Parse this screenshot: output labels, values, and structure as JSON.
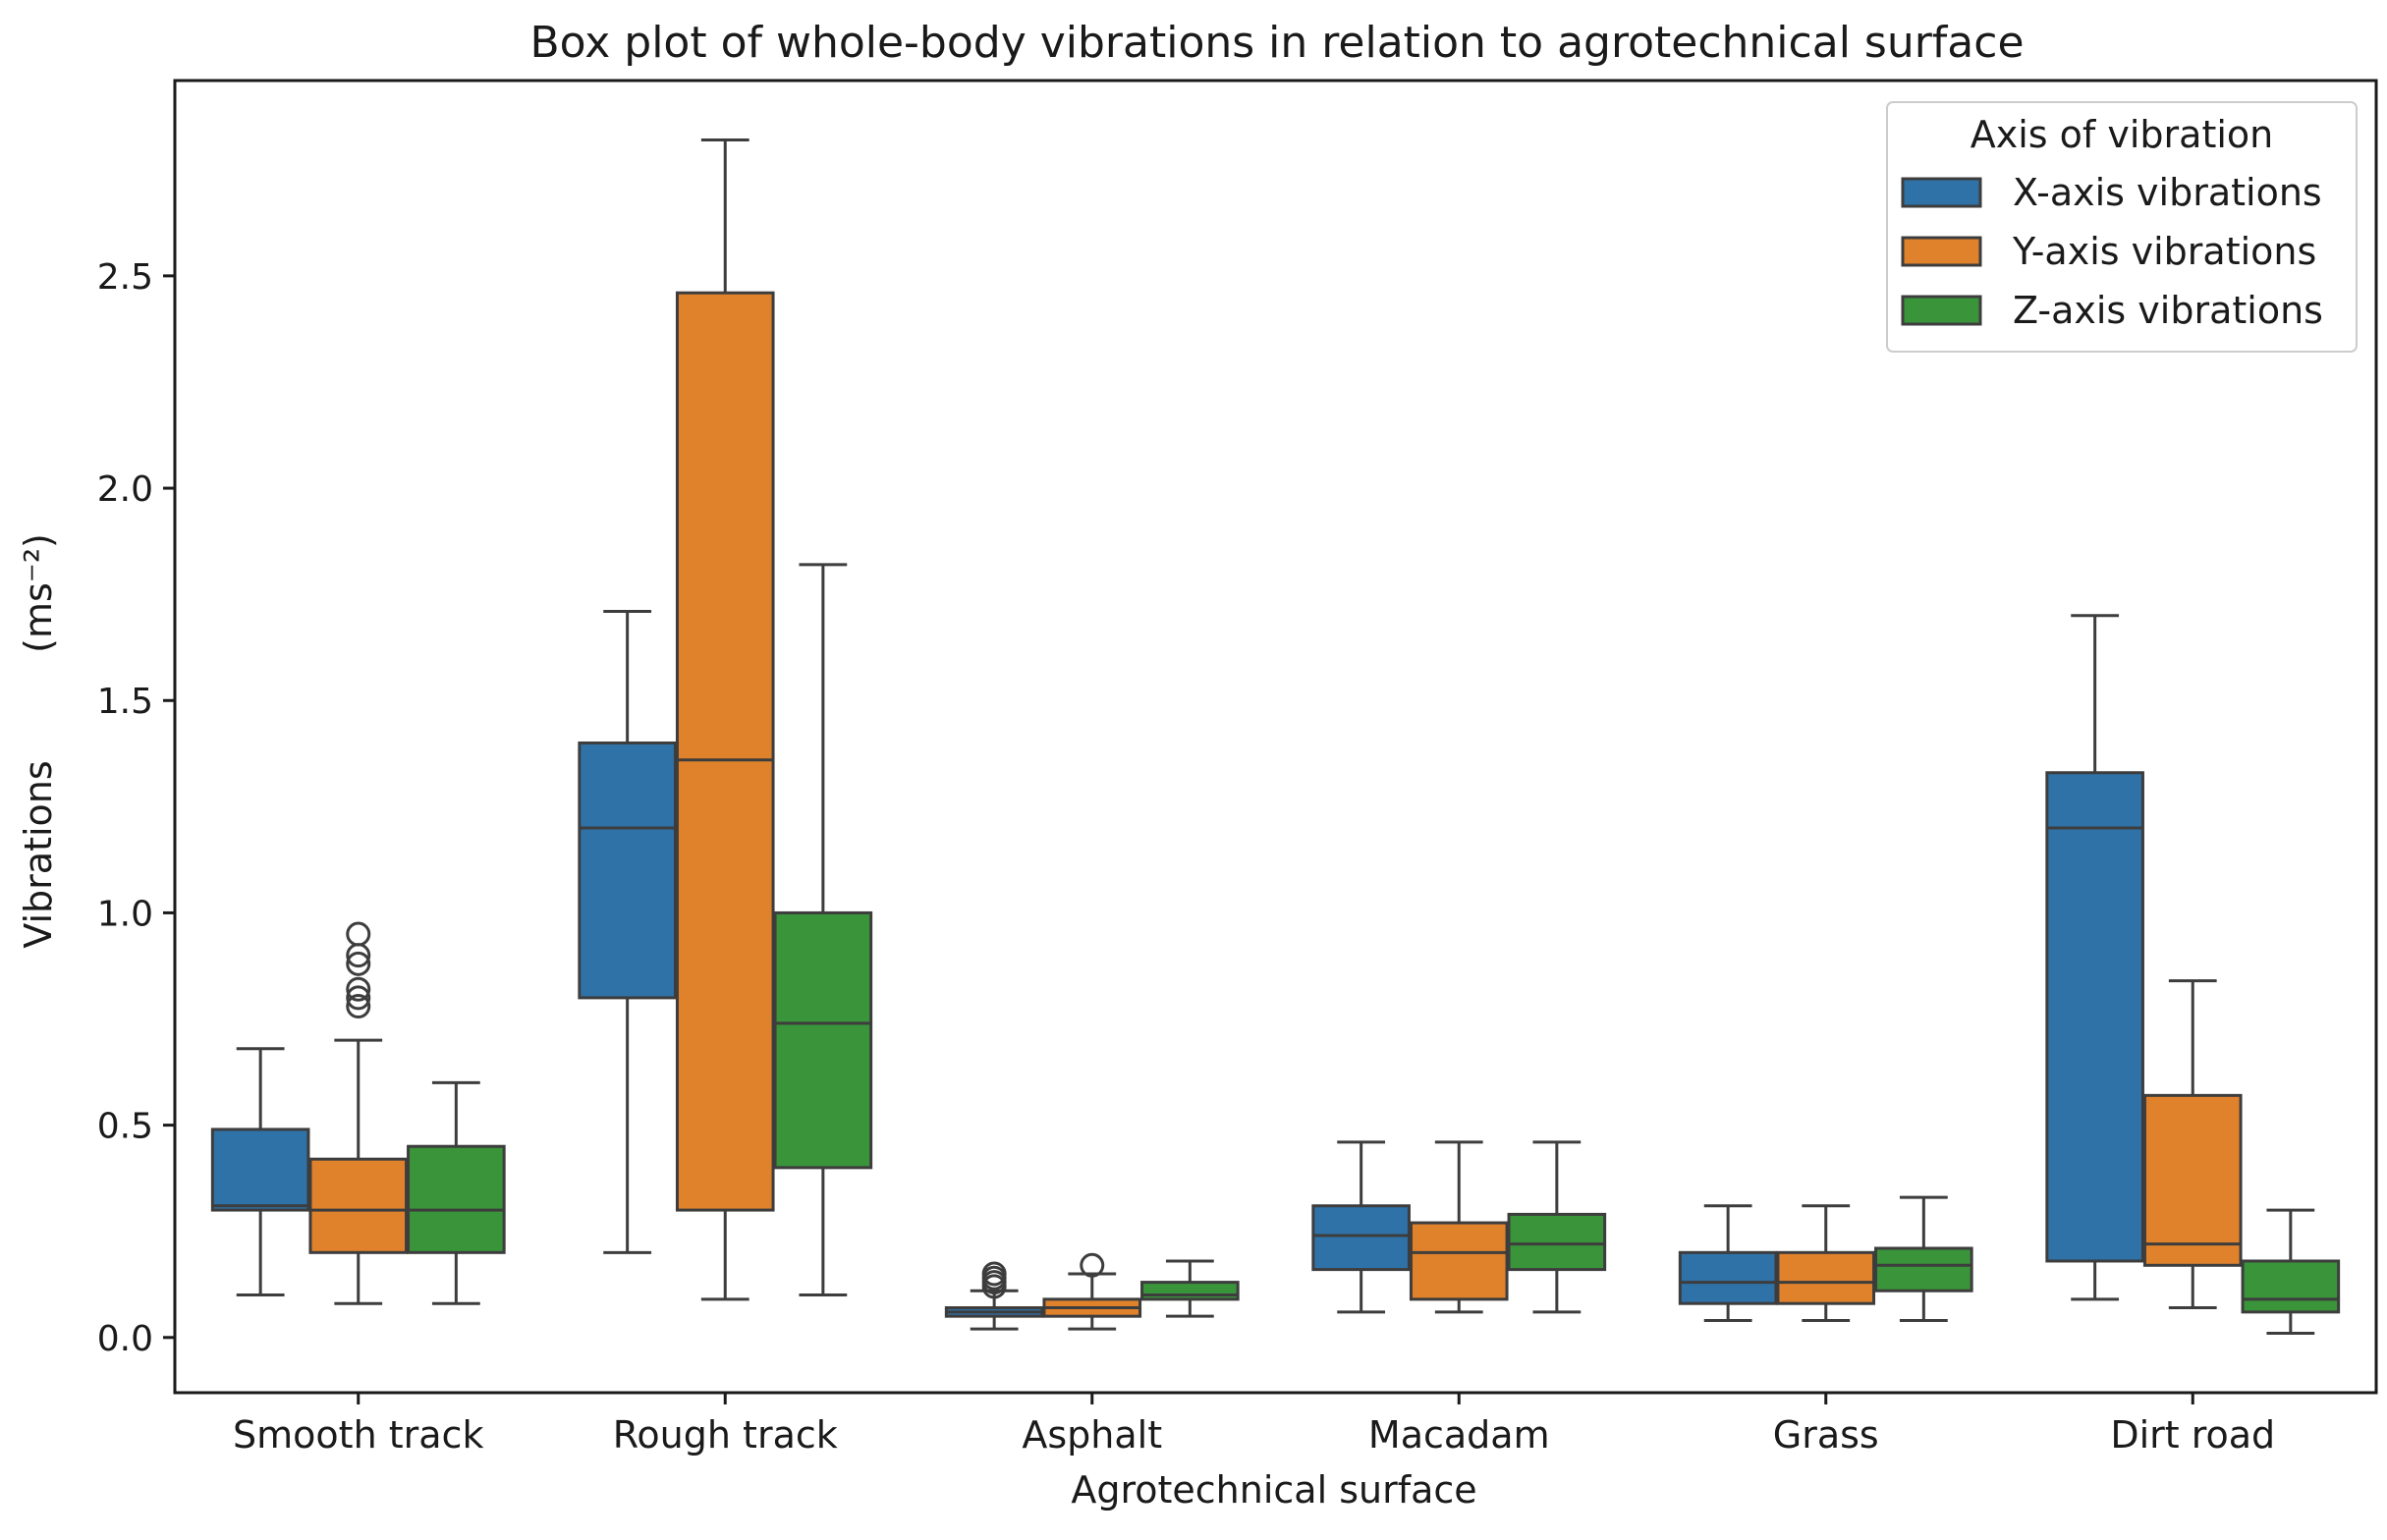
{
  "chart_data": {
    "type": "box",
    "title": "Box plot of whole-body vibrations in relation to agrotechnical surface",
    "xlabel": "Agrotechnical surface",
    "ylabel": "Vibrations",
    "ylabel_unit": "(ms⁻²)",
    "ylim": [
      -0.13,
      2.96
    ],
    "yticks": [
      0.0,
      0.5,
      1.0,
      1.5,
      2.0,
      2.5
    ],
    "ytick_labels": [
      "0.0",
      "0.5",
      "1.0",
      "1.5",
      "2.0",
      "2.5"
    ],
    "grid": false,
    "categories": [
      "Smooth track",
      "Rough track",
      "Asphalt",
      "Macadam",
      "Grass",
      "Dirt road"
    ],
    "legend": {
      "title": "Axis of vibration",
      "location": "top-right"
    },
    "series": [
      {
        "name": "X-axis vibrations",
        "color": "#2f72a8",
        "boxes": [
          {
            "whislo": 0.1,
            "q1": 0.3,
            "med": 0.31,
            "q3": 0.49,
            "whishi": 0.68,
            "fliers": []
          },
          {
            "whislo": 0.2,
            "q1": 0.8,
            "med": 1.2,
            "q3": 1.4,
            "whishi": 1.71,
            "fliers": []
          },
          {
            "whislo": 0.02,
            "q1": 0.05,
            "med": 0.06,
            "q3": 0.07,
            "whishi": 0.11,
            "fliers": [
              0.12,
              0.13,
              0.14,
              0.15
            ]
          },
          {
            "whislo": 0.06,
            "q1": 0.16,
            "med": 0.24,
            "q3": 0.31,
            "whishi": 0.46,
            "fliers": []
          },
          {
            "whislo": 0.04,
            "q1": 0.08,
            "med": 0.13,
            "q3": 0.2,
            "whishi": 0.31,
            "fliers": []
          },
          {
            "whislo": 0.09,
            "q1": 0.18,
            "med": 1.2,
            "q3": 1.33,
            "whishi": 1.7,
            "fliers": []
          }
        ]
      },
      {
        "name": "Y-axis vibrations",
        "color": "#e0822c",
        "boxes": [
          {
            "whislo": 0.08,
            "q1": 0.2,
            "med": 0.3,
            "q3": 0.42,
            "whishi": 0.7,
            "fliers": [
              0.78,
              0.8,
              0.82,
              0.88,
              0.9,
              0.95
            ]
          },
          {
            "whislo": 0.09,
            "q1": 0.3,
            "med": 1.36,
            "q3": 2.46,
            "whishi": 2.82,
            "fliers": []
          },
          {
            "whislo": 0.02,
            "q1": 0.05,
            "med": 0.07,
            "q3": 0.09,
            "whishi": 0.15,
            "fliers": [
              0.17
            ]
          },
          {
            "whislo": 0.06,
            "q1": 0.09,
            "med": 0.2,
            "q3": 0.27,
            "whishi": 0.46,
            "fliers": []
          },
          {
            "whislo": 0.04,
            "q1": 0.08,
            "med": 0.13,
            "q3": 0.2,
            "whishi": 0.31,
            "fliers": []
          },
          {
            "whislo": 0.07,
            "q1": 0.17,
            "med": 0.22,
            "q3": 0.57,
            "whishi": 0.84,
            "fliers": []
          }
        ]
      },
      {
        "name": "Z-axis vibrations",
        "color": "#3a943a",
        "boxes": [
          {
            "whislo": 0.08,
            "q1": 0.2,
            "med": 0.3,
            "q3": 0.45,
            "whishi": 0.6,
            "fliers": []
          },
          {
            "whislo": 0.1,
            "q1": 0.4,
            "med": 0.74,
            "q3": 1.0,
            "whishi": 1.82,
            "fliers": []
          },
          {
            "whislo": 0.05,
            "q1": 0.09,
            "med": 0.1,
            "q3": 0.13,
            "whishi": 0.18,
            "fliers": []
          },
          {
            "whislo": 0.06,
            "q1": 0.16,
            "med": 0.22,
            "q3": 0.29,
            "whishi": 0.46,
            "fliers": []
          },
          {
            "whislo": 0.04,
            "q1": 0.11,
            "med": 0.17,
            "q3": 0.21,
            "whishi": 0.33,
            "fliers": []
          },
          {
            "whislo": 0.01,
            "q1": 0.06,
            "med": 0.09,
            "q3": 0.18,
            "whishi": 0.3,
            "fliers": []
          }
        ]
      }
    ]
  }
}
